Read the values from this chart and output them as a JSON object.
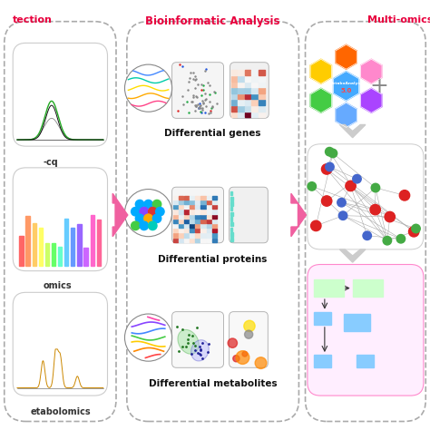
{
  "title_center": "Bioinformatic Analysis",
  "title_right": "Multi-omics Inte",
  "title_left": "tection",
  "label_seq": "-cq",
  "label_omics": "omics",
  "label_metabolomics": "etabolomics",
  "label_diff_genes": "Differential genes",
  "label_diff_proteins": "Differential proteins",
  "label_diff_metabolites": "Differential metabolites",
  "bg_color": "#ffffff",
  "title_color": "#e8003d",
  "arrow_color": "#f060a0",
  "dashed_border_color": "#bbbbbb",
  "panel_bg": "#f8f8f8"
}
